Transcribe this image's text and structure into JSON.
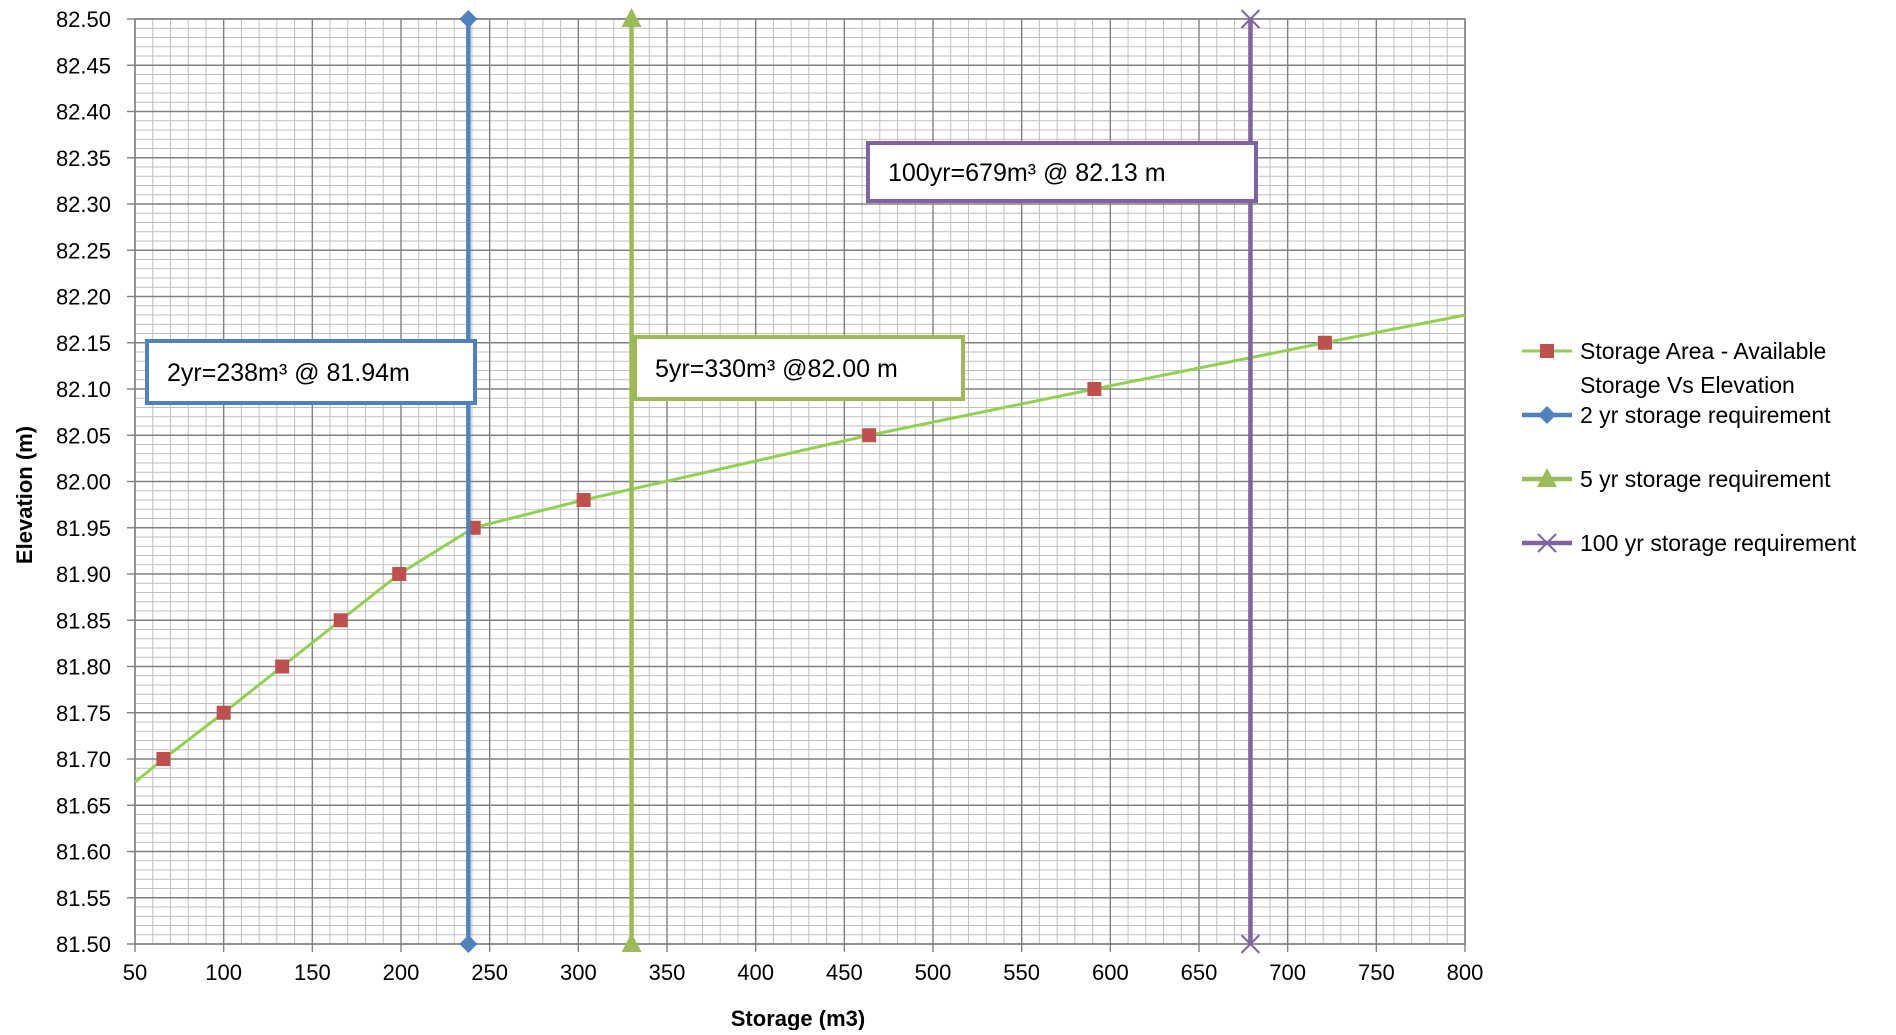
{
  "chart_data": {
    "type": "scatter",
    "title": "",
    "xlabel": "Storage (m3)",
    "ylabel": "Elevation (m)",
    "xlim": [
      50,
      800
    ],
    "ylim": [
      81.5,
      82.5
    ],
    "x_ticks": [
      "50",
      "100",
      "150",
      "200",
      "250",
      "300",
      "350",
      "400",
      "450",
      "500",
      "550",
      "600",
      "650",
      "700",
      "750",
      "800"
    ],
    "y_ticks": [
      "81.50",
      "81.55",
      "81.60",
      "81.65",
      "81.70",
      "81.75",
      "81.80",
      "81.85",
      "81.90",
      "81.95",
      "82.00",
      "82.05",
      "82.10",
      "82.15",
      "82.20",
      "82.25",
      "82.30",
      "82.35",
      "82.40",
      "82.45",
      "82.50"
    ],
    "grid": true,
    "legend_position": "right",
    "series": [
      {
        "name": "Storage Area - Available Storage Vs Elevation",
        "legend_lines": [
          "Storage Area - Available",
          "Storage Vs Elevation"
        ],
        "color": "#92D050",
        "marker": "square",
        "marker_color": "#C0504D",
        "points": [
          {
            "x": 66,
            "y": 81.7
          },
          {
            "x": 100,
            "y": 81.75
          },
          {
            "x": 133,
            "y": 81.8
          },
          {
            "x": 166,
            "y": 81.85
          },
          {
            "x": 199,
            "y": 81.9
          },
          {
            "x": 241,
            "y": 81.95
          },
          {
            "x": 303,
            "y": 81.98
          },
          {
            "x": 464,
            "y": 82.05
          },
          {
            "x": 591,
            "y": 82.1
          },
          {
            "x": 721,
            "y": 82.15
          }
        ],
        "line_start": {
          "x": 50,
          "y": 81.675
        },
        "line_end": {
          "x": 800,
          "y": 82.18
        }
      },
      {
        "name": "2 yr storage requirement",
        "color": "#4F81BD",
        "marker": "diamond",
        "points": [
          {
            "x": 238,
            "y": 81.5
          },
          {
            "x": 238,
            "y": 82.5
          }
        ]
      },
      {
        "name": "5 yr storage requirement",
        "color": "#9BBB59",
        "marker": "triangle",
        "points": [
          {
            "x": 330,
            "y": 81.5
          },
          {
            "x": 330,
            "y": 82.5
          }
        ]
      },
      {
        "name": "100 yr storage requirement",
        "color": "#8064A2",
        "marker": "x",
        "points": [
          {
            "x": 679,
            "y": 81.5
          },
          {
            "x": 679,
            "y": 82.5
          }
        ]
      }
    ],
    "annotations": [
      {
        "text": "2yr=238m³ @ 81.94m",
        "color": "#4F81BD",
        "series": "2 yr storage requirement"
      },
      {
        "text": "5yr=330m³ @82.00 m",
        "color": "#9BBB59",
        "series": "5 yr storage requirement"
      },
      {
        "text": "100yr=679m³ @ 82.13 m",
        "color": "#8064A2",
        "series": "100 yr storage requirement"
      }
    ]
  }
}
